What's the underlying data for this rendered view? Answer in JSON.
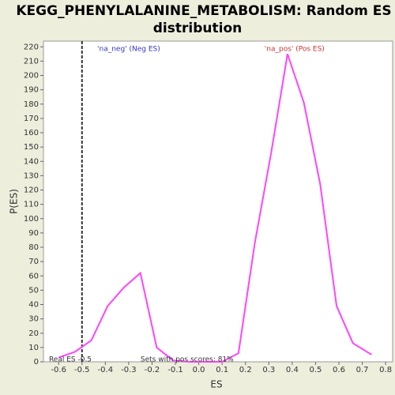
{
  "chart_data": {
    "type": "line",
    "title": [
      "KEGG_PHENYLALANINE_METABOLISM: Random ES",
      "distribution"
    ],
    "x_label": "ES",
    "y_label": "P(ES)",
    "x": [
      -0.6,
      -0.53,
      -0.46,
      -0.39,
      -0.32,
      -0.25,
      -0.18,
      -0.11,
      -0.04,
      0.03,
      0.1,
      0.17,
      0.24,
      0.31,
      0.38,
      0.45,
      0.52,
      0.59,
      0.66,
      0.74
    ],
    "series": [
      {
        "color": "#ff44ff",
        "values": [
          3,
          7,
          15,
          39,
          52,
          62,
          10,
          1,
          0,
          0,
          0,
          6,
          83,
          146,
          215,
          181,
          124,
          39,
          13,
          5
        ]
      }
    ],
    "xlim": [
      -0.665,
      0.83
    ],
    "ylim": [
      0,
      224
    ],
    "xticks": [
      -0.6,
      -0.5,
      -0.4,
      -0.3,
      -0.2,
      -0.1,
      {
        "value": 0,
        "label": "0.0"
      },
      0.1,
      0.2,
      0.3,
      0.4,
      0.5,
      0.6,
      0.7,
      0.8
    ],
    "yticks": [
      0,
      10,
      20,
      30,
      40,
      50,
      60,
      70,
      80,
      90,
      100,
      110,
      120,
      130,
      140,
      150,
      160,
      170,
      180,
      190,
      200,
      210,
      220
    ],
    "real_es": -0.5,
    "annotations": [
      {
        "text": "'na_neg' (Neg ES)",
        "color": "#3333cc",
        "x": -0.3
      },
      {
        "text": "'na_pos' (Pos ES)",
        "color": "#cc3333",
        "x": 0.41
      },
      {
        "text": "Real ES -0.5",
        "color": "#333333",
        "x": -0.55
      },
      {
        "text": "Sets with pos scores: 81%",
        "color": "#333333",
        "x": -0.05
      }
    ]
  }
}
